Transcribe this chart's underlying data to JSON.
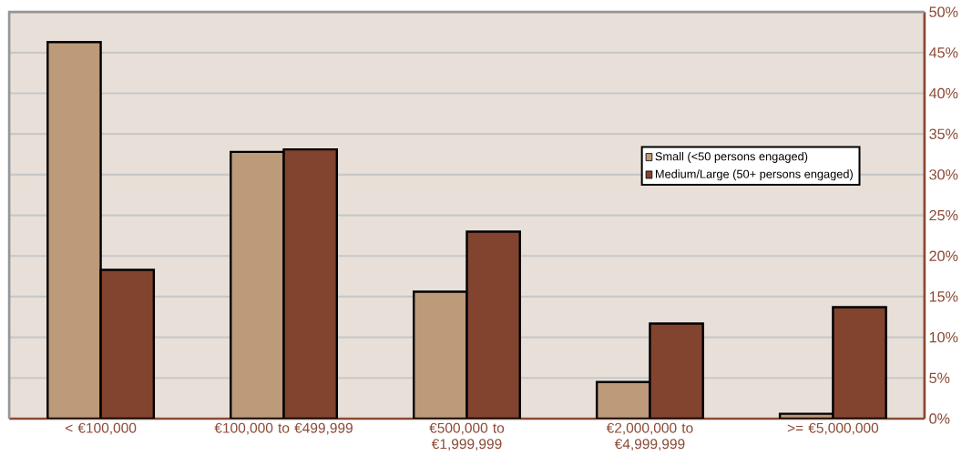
{
  "chart_data": {
    "type": "bar",
    "categories": [
      "< €100,000",
      "€100,000 to €499,999",
      "€500,000 to €1,999,999",
      "€2,000,000 to €4,999,999",
      ">= €5,000,000"
    ],
    "series": [
      {
        "name": "Small (<50 persons engaged)",
        "color": "#bc9a7a",
        "values": [
          46.3,
          32.8,
          15.6,
          4.5,
          0.6
        ]
      },
      {
        "name": "Medium/Large (50+ persons engaged)",
        "color": "#82432f",
        "values": [
          18.3,
          33.1,
          23.0,
          11.7,
          13.7
        ]
      }
    ],
    "ylim": [
      0,
      50
    ],
    "yticks": [
      {
        "value": 0,
        "label": "0%"
      },
      {
        "value": 5,
        "label": "5%"
      },
      {
        "value": 10,
        "label": "10%"
      },
      {
        "value": 15,
        "label": "15%"
      },
      {
        "value": 20,
        "label": "20%"
      },
      {
        "value": 25,
        "label": "25%"
      },
      {
        "value": 30,
        "label": "30%"
      },
      {
        "value": 35,
        "label": "35%"
      },
      {
        "value": 40,
        "label": "40%"
      },
      {
        "value": 45,
        "label": "45%"
      },
      {
        "value": 50,
        "label": "50%"
      }
    ],
    "grid": "y",
    "legend": "right"
  }
}
